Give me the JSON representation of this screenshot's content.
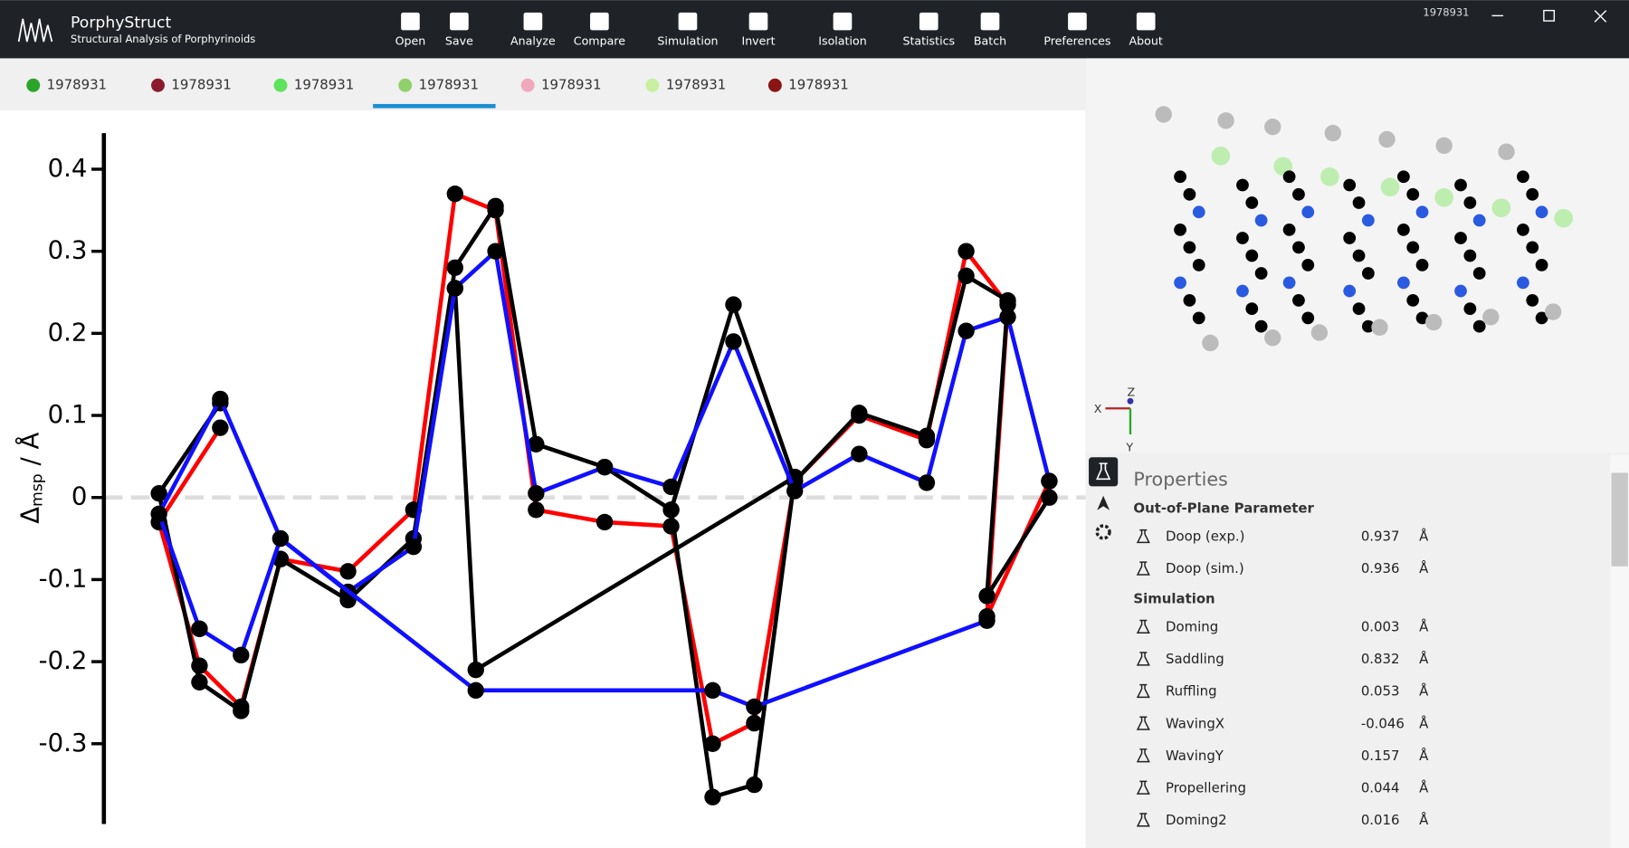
{
  "app": {
    "title": "PorphyStruct",
    "subtitle": "Structural Analysis of Porphyrinoids",
    "window_label": "1978931"
  },
  "toolbar": [
    "Open",
    "Save",
    "Analyze",
    "Compare",
    "Simulation",
    "Invert",
    "Isolation",
    "Statistics",
    "Batch",
    "Preferences",
    "About"
  ],
  "tabs": [
    {
      "label": "1978931",
      "color": "#2aa52a"
    },
    {
      "label": "1978931",
      "color": "#8b1a2e"
    },
    {
      "label": "1978931",
      "color": "#5ee35e"
    },
    {
      "label": "1978931",
      "color": "#8fd16b"
    },
    {
      "label": "1978931",
      "color": "#f0a8bc"
    },
    {
      "label": "1978931",
      "color": "#c8f0a0"
    },
    {
      "label": "1978931",
      "color": "#8b1515"
    }
  ],
  "active_tab": 3,
  "chart_data": {
    "type": "line",
    "y_label": {
      "symbol": "Δ",
      "subscript": "msp",
      "unit": " / Å"
    },
    "xlim": [
      0,
      94.5
    ],
    "ylim": [
      -0.394,
      0.444
    ],
    "yticks": [
      0.4,
      0.3,
      0.2,
      0.1,
      0,
      -0.1,
      -0.2,
      -0.3
    ],
    "zero_line": true,
    "marker_color": "#000000",
    "series": [
      {
        "color": "#ff0000",
        "x": [
          11.2,
          5.3,
          9.2,
          13.2,
          17,
          23.5,
          29.8,
          33.8,
          37.7,
          41.6,
          48.2,
          54.6,
          58.6,
          62.6,
          66.5,
          72.7,
          79.2,
          83,
          87,
          85,
          91
        ],
        "values": [
          0.085,
          -0.03,
          -0.205,
          -0.255,
          -0.075,
          -0.09,
          -0.015,
          0.37,
          0.35,
          -0.015,
          -0.03,
          -0.035,
          -0.3,
          -0.275,
          0.02,
          0.1,
          0.07,
          0.3,
          0.235,
          -0.145,
          0.02
        ]
      },
      {
        "color": "#000000",
        "x": [
          11.2,
          5.3,
          9.2,
          13.2,
          17,
          23.5,
          29.8,
          33.8,
          37.7,
          41.6,
          48.2,
          54.6,
          60.6,
          66.5,
          72.7,
          79.2,
          83,
          87,
          85,
          91
        ],
        "values": [
          0.115,
          0.005,
          -0.225,
          -0.26,
          -0.075,
          -0.125,
          -0.05,
          0.28,
          0.355,
          0.065,
          0.037,
          -0.015,
          0.235,
          0.02,
          0.103,
          0.075,
          0.27,
          0.24,
          -0.12,
          0.0
        ]
      },
      {
        "color": "#000000",
        "x": [
          54.6,
          58.6,
          62.6,
          66.5,
          35.8,
          33.8
        ],
        "values": [
          -0.015,
          -0.365,
          -0.35,
          0.025,
          -0.21,
          0.255
        ]
      },
      {
        "color": "#1010ff",
        "x": [
          9.2,
          5.3,
          11.2,
          17,
          23.5,
          29.8,
          33.8,
          37.7,
          41.6,
          48.2,
          54.6,
          60.6,
          66.5,
          72.7,
          79.2,
          83,
          87,
          91
        ],
        "values": [
          -0.16,
          -0.02,
          0.12,
          -0.05,
          -0.115,
          -0.06,
          0.255,
          0.3,
          0.005,
          0.037,
          0.013,
          0.19,
          0.008,
          0.053,
          0.018,
          0.203,
          0.22,
          0.02
        ]
      },
      {
        "color": "#1010ff",
        "x": [
          9.2,
          13.2,
          17,
          35.8,
          58.6,
          62.6,
          85
        ],
        "values": [
          -0.16,
          -0.192,
          -0.05,
          -0.235,
          -0.235,
          -0.255,
          -0.15
        ]
      }
    ]
  },
  "viewer": {
    "axes": [
      "X",
      "Y",
      "Z"
    ]
  },
  "properties": {
    "title": "Properties",
    "groups": [
      {
        "title": "Out-of-Plane Parameter",
        "rows": [
          {
            "name": "Doop (exp.)",
            "value": 0.937,
            "unit": "Å"
          },
          {
            "name": "Doop (sim.)",
            "value": 0.936,
            "unit": "Å"
          }
        ]
      },
      {
        "title": "Simulation",
        "rows": [
          {
            "name": "Doming",
            "value": 0.003,
            "unit": "Å"
          },
          {
            "name": "Saddling",
            "value": 0.832,
            "unit": "Å"
          },
          {
            "name": "Ruffling",
            "value": 0.053,
            "unit": "Å"
          },
          {
            "name": "WavingX",
            "value": -0.046,
            "unit": "Å"
          },
          {
            "name": "WavingY",
            "value": 0.157,
            "unit": "Å"
          },
          {
            "name": "Propellering",
            "value": 0.044,
            "unit": "Å"
          },
          {
            "name": "Doming2",
            "value": 0.016,
            "unit": "Å"
          }
        ]
      }
    ]
  }
}
